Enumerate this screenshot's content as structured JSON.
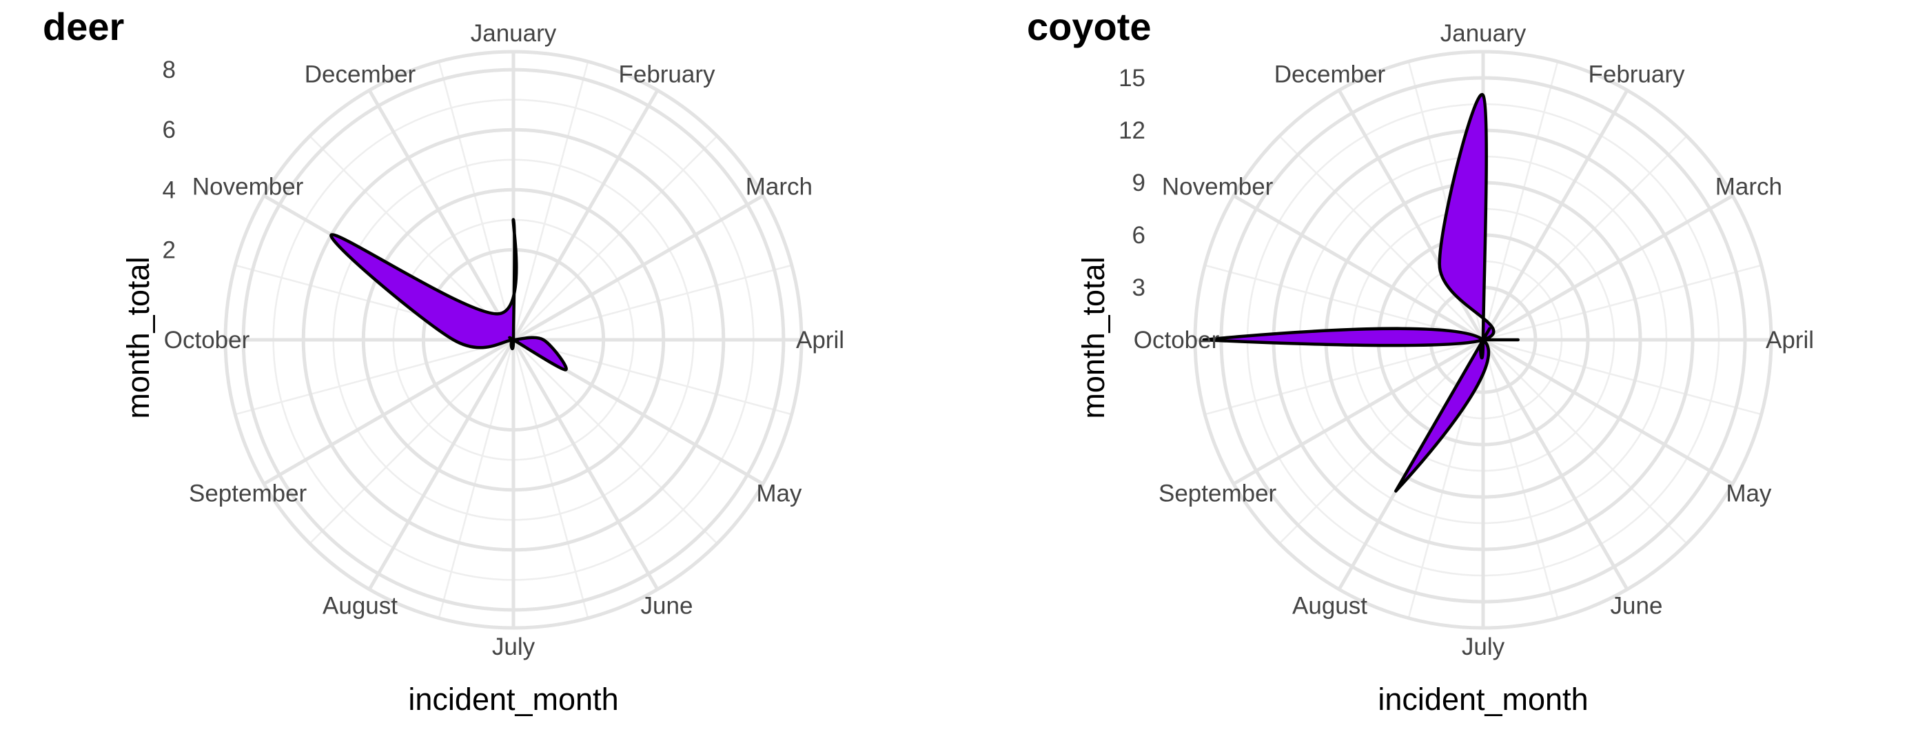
{
  "chart_data": [
    {
      "type": "area",
      "coord": "polar",
      "title": "deer",
      "xlabel": "incident_month",
      "ylabel": "month_total",
      "categories": [
        "January",
        "February",
        "March",
        "April",
        "May",
        "June",
        "July",
        "August",
        "September",
        "October",
        "November",
        "December"
      ],
      "r_ticks": [
        "2",
        "4",
        "6",
        "8"
      ],
      "r_tick_values": [
        2,
        4,
        6,
        8
      ],
      "r_range": [
        -1,
        8.6
      ],
      "fill": "#8B00EE",
      "values": [
        3,
        -1,
        -1,
        0,
        1,
        -1,
        -1,
        -1,
        -1,
        1,
        6,
        0
      ]
    },
    {
      "type": "area",
      "coord": "polar",
      "title": "coyote",
      "xlabel": "incident_month",
      "ylabel": "month_total",
      "categories": [
        "January",
        "February",
        "March",
        "April",
        "May",
        "June",
        "July",
        "August",
        "September",
        "October",
        "November",
        "December"
      ],
      "r_ticks": [
        "3",
        "6",
        "9",
        "12",
        "15"
      ],
      "r_tick_values": [
        3,
        6,
        9,
        12,
        15
      ],
      "r_range": [
        0,
        16.5
      ],
      "fill": "#8B00EE",
      "values": [
        14,
        0,
        0,
        2,
        0,
        0,
        0,
        10,
        0,
        16,
        0,
        5
      ]
    }
  ]
}
